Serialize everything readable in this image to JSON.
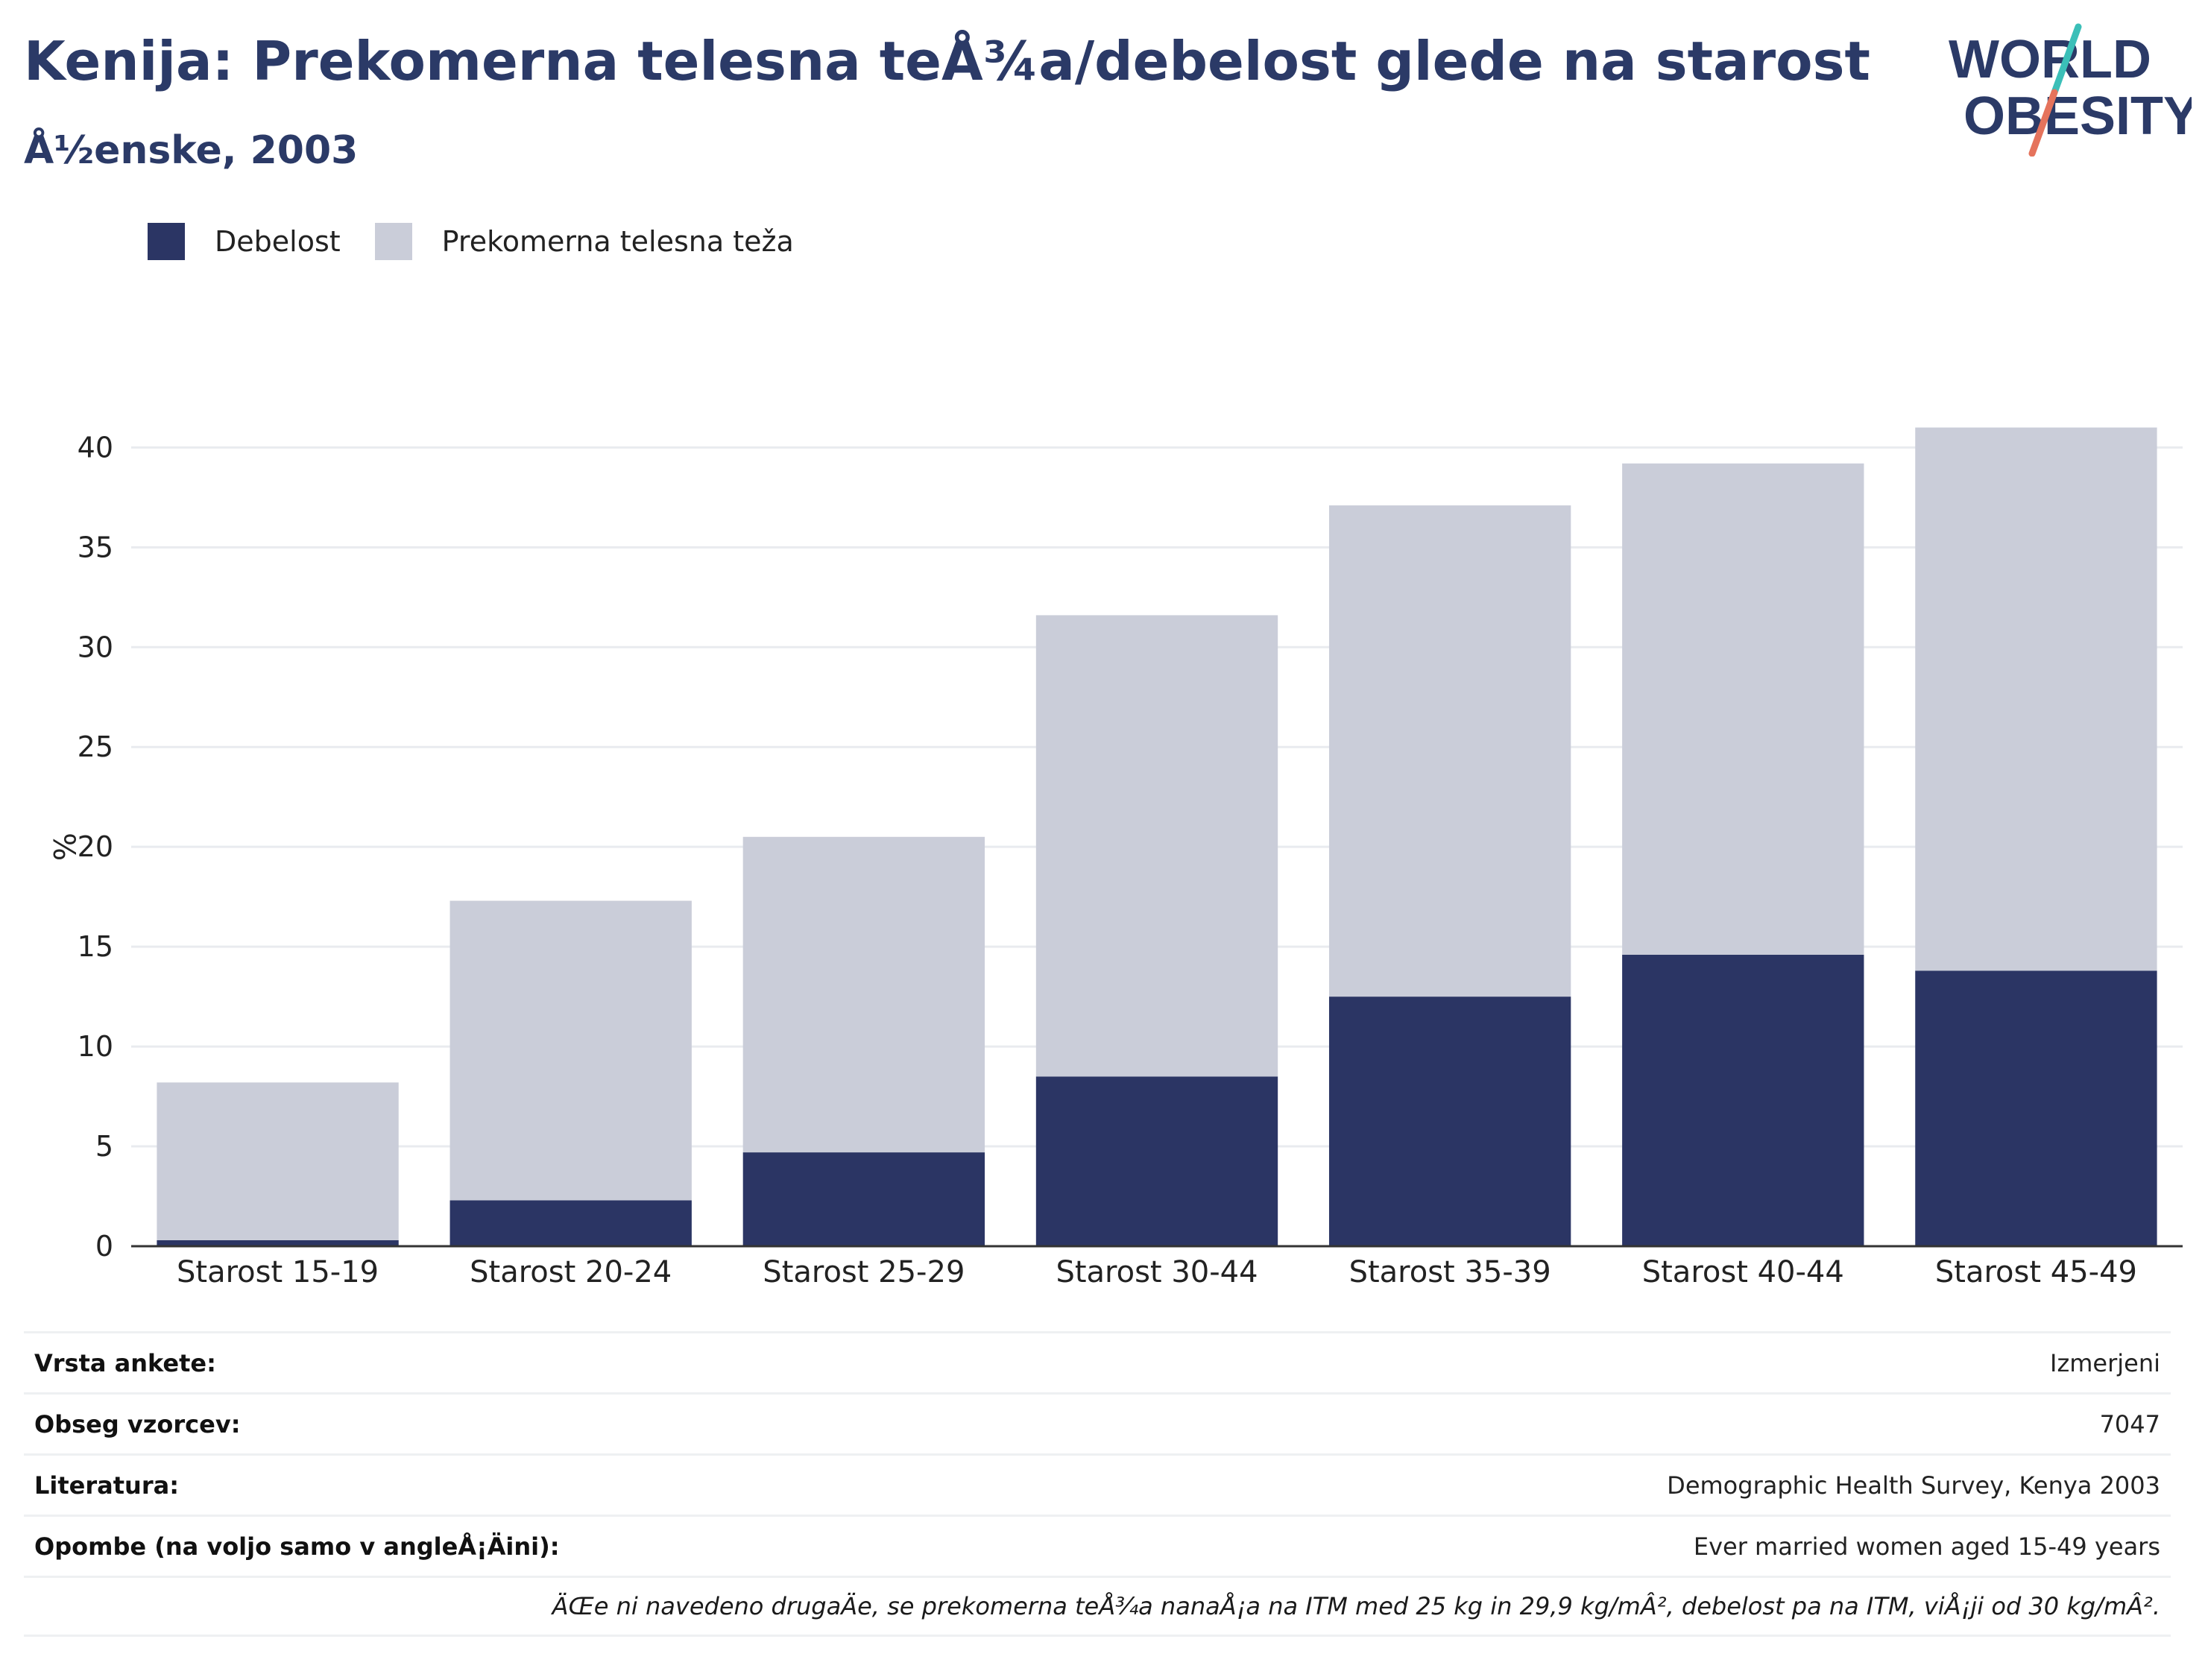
{
  "header": {
    "title": "Kenija: Prekomerna telesna teÅ¾a/debelost glede na starost",
    "subtitle": "Å½enske, 2003"
  },
  "logo": {
    "line1": "WORLD",
    "line2": "OBESITY",
    "colors": {
      "text": "#2b3a67",
      "slash_top": "#3bbfb8",
      "slash_bottom": "#e5735c"
    }
  },
  "legend": {
    "items": [
      {
        "label": "Debelost",
        "color": "#2b3564"
      },
      {
        "label": "Prekomerna telesna teža",
        "color": "#cacdd9"
      }
    ]
  },
  "chart_data": {
    "type": "bar",
    "stacked": true,
    "categories": [
      "Starost 15-19",
      "Starost 20-24",
      "Starost 25-29",
      "Starost 30-44",
      "Starost 35-39",
      "Starost 40-44",
      "Starost 45-49"
    ],
    "series": [
      {
        "name": "Debelost",
        "color": "#2b3564",
        "values": [
          0.3,
          2.3,
          4.7,
          8.5,
          12.5,
          14.6,
          13.8
        ]
      },
      {
        "name": "Prekomerna telesna teža",
        "color": "#cacdd9",
        "values": [
          7.9,
          15.0,
          15.8,
          23.1,
          24.6,
          24.6,
          27.2
        ]
      }
    ],
    "ylabel": "%",
    "ylim": [
      0,
      43
    ],
    "yticks": [
      0,
      5,
      10,
      15,
      20,
      25,
      30,
      35,
      40
    ],
    "grid": true,
    "legend_position": "top-left"
  },
  "info": {
    "rows": [
      {
        "label": "Vrsta ankete:",
        "value": "Izmerjeni"
      },
      {
        "label": "Obseg vzorcev:",
        "value": "7047"
      },
      {
        "label": "Literatura:",
        "value": "Demographic Health Survey, Kenya 2003"
      },
      {
        "label": "Opombe (na voljo samo v angleÅ¡Äini):",
        "value": "Ever married women aged 15-49 years"
      }
    ],
    "note": "ÄŒe ni navedeno drugaÄe, se prekomerna teÅ¾a nanaÅ¡a na ITM med 25 kg in 29,9 kg/mÂ², debelost pa na ITM, viÅ¡ji od 30 kg/mÂ²."
  }
}
